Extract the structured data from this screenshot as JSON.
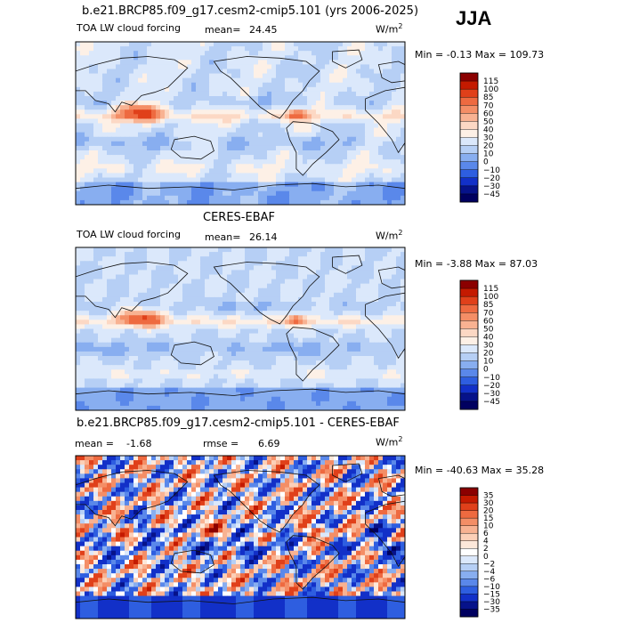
{
  "season": "JJA",
  "panels": [
    {
      "title": "b.e21.BRCP85.f09_g17.cesm2-cmip5.101 (yrs 2006-2025)",
      "variable": "TOA LW cloud forcing",
      "mean_label": "mean=",
      "mean": "24.45",
      "rmse_label": "",
      "rmse": "",
      "units": "W/m",
      "units_sup": "2",
      "minmax": "Min =  -0.13 Max = 109.73"
    },
    {
      "title": "CERES-EBAF",
      "variable": "TOA LW cloud forcing",
      "mean_label": "mean=",
      "mean": "26.14",
      "rmse_label": "",
      "rmse": "",
      "units": "W/m",
      "units_sup": "2",
      "minmax": "Min =  -3.88 Max =  87.03"
    },
    {
      "title": "b.e21.BRCP85.f09_g17.cesm2-cmip5.101 - CERES-EBAF",
      "variable": "",
      "mean_label": "mean =",
      "mean": "-1.68",
      "rmse_label": "rmse =",
      "rmse": "6.69",
      "units": "W/m",
      "units_sup": "2",
      "minmax": "Min = -40.63 Max =  35.28"
    }
  ],
  "colorbars": [
    {
      "labels": [
        "115",
        "100",
        "85",
        "70",
        "60",
        "50",
        "40",
        "30",
        "20",
        "10",
        "0",
        "−10",
        "−20",
        "−30",
        "−45"
      ],
      "colors": [
        "#8b0000",
        "#c41a00",
        "#e0401a",
        "#ee6a40",
        "#f48e66",
        "#f8b292",
        "#fcd8c4",
        "#fdf0e6",
        "#dbe8fb",
        "#b6cff5",
        "#88aef0",
        "#5a88ea",
        "#2e5ee0",
        "#1230c8",
        "#06128a",
        "#000060"
      ]
    },
    {
      "labels": [
        "115",
        "100",
        "85",
        "70",
        "60",
        "50",
        "40",
        "30",
        "20",
        "10",
        "0",
        "−10",
        "−20",
        "−30",
        "−45"
      ],
      "colors": [
        "#8b0000",
        "#c41a00",
        "#e0401a",
        "#ee6a40",
        "#f48e66",
        "#f8b292",
        "#fcd8c4",
        "#fdf0e6",
        "#dbe8fb",
        "#b6cff5",
        "#88aef0",
        "#5a88ea",
        "#2e5ee0",
        "#1230c8",
        "#06128a",
        "#000060"
      ]
    },
    {
      "labels": [
        "35",
        "30",
        "20",
        "15",
        "10",
        "6",
        "4",
        "2",
        "0",
        "−2",
        "−4",
        "−6",
        "−10",
        "−15",
        "−30",
        "−35"
      ],
      "colors": [
        "#8b0000",
        "#c41a00",
        "#e0401a",
        "#ee6a40",
        "#f48e66",
        "#f8b292",
        "#fcd0b8",
        "#fde8da",
        "#ffffff",
        "#dbe8fb",
        "#b6cff5",
        "#88aef0",
        "#5a88ea",
        "#2e5ee0",
        "#1230c8",
        "#06128a",
        "#000060"
      ]
    }
  ],
  "chart_data": [
    {
      "type": "heatmap",
      "title": "b.e21.BRCP85.f09_g17.cesm2-cmip5.101 (yrs 2006-2025)",
      "subtitle": "TOA LW cloud forcing",
      "mean": 24.45,
      "min": -0.13,
      "max": 109.73,
      "units": "W/m2",
      "contour_levels": [
        -45,
        -30,
        -20,
        -10,
        0,
        10,
        20,
        30,
        40,
        50,
        60,
        70,
        85,
        100,
        115
      ]
    },
    {
      "type": "heatmap",
      "title": "CERES-EBAF",
      "subtitle": "TOA LW cloud forcing",
      "mean": 26.14,
      "min": -3.88,
      "max": 87.03,
      "units": "W/m2",
      "contour_levels": [
        -45,
        -30,
        -20,
        -10,
        0,
        10,
        20,
        30,
        40,
        50,
        60,
        70,
        85,
        100,
        115
      ]
    },
    {
      "type": "heatmap",
      "title": "b.e21.BRCP85.f09_g17.cesm2-cmip5.101 - CERES-EBAF",
      "mean": -1.68,
      "rmse": 6.69,
      "min": -40.63,
      "max": 35.28,
      "units": "W/m2",
      "contour_levels": [
        -35,
        -30,
        -15,
        -10,
        -6,
        -4,
        -2,
        0,
        2,
        4,
        6,
        10,
        15,
        20,
        30,
        35
      ]
    }
  ]
}
